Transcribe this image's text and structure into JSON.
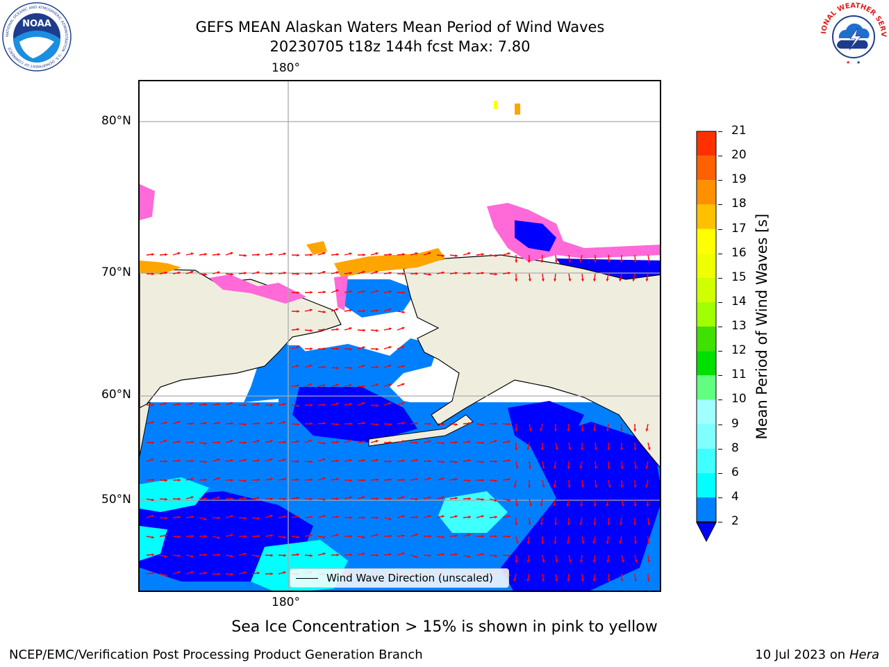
{
  "title_line1": "GEFS MEAN Alaskan Waters Mean Period of Wind Waves",
  "title_line2": "20230705 t18z 144h fcst   Max: 7.80",
  "noaa_logo": {
    "center": "NOAA",
    "ring": "NATIONAL OCEANIC AND ATMOSPHERIC ADMINISTRATION · U.S. DEPARTMENT OF COMMERCE"
  },
  "nws_logo": {
    "ring": "NATIONAL WEATHER SERVICE"
  },
  "map": {
    "lon_top": "180°",
    "lon_bottom": "180°",
    "lat_labels": [
      "80°N",
      "70°N",
      "60°N",
      "50°N"
    ],
    "legend_label": "Wind Wave Direction (unscaled)",
    "colors": {
      "land": "#efedde",
      "ocean_blue": "#0082ff",
      "deep_blue": "#0000ff",
      "cyan": "#00ffff",
      "ice_magenta": "#ff69d8",
      "ice_orange": "#ffa500",
      "arrows": "#ff0000"
    }
  },
  "colorbar": {
    "title": "Mean Period of Wind Waves [s]",
    "ticks": [
      "2",
      "4",
      "6",
      "8",
      "9",
      "10",
      "11",
      "12",
      "13",
      "14",
      "15",
      "16",
      "17",
      "18",
      "19",
      "20",
      "21"
    ],
    "levels": [
      2,
      4,
      6,
      8,
      9,
      10,
      11,
      12,
      13,
      14,
      15,
      16,
      17,
      18,
      19,
      20,
      21
    ],
    "colors": [
      "#0080ff",
      "#00ffff",
      "#40ffff",
      "#80ffff",
      "#a0ffff",
      "#60ff80",
      "#00e000",
      "#40e000",
      "#a0ff00",
      "#d0ff00",
      "#f0ff00",
      "#ffff00",
      "#ffc000",
      "#ff9000",
      "#ff6000",
      "#ff3000",
      "#ff0000"
    ],
    "under_color": "#0000ff"
  },
  "note": "Sea Ice Concentration > 15% is shown in pink to yellow",
  "footer_left": "NCEP/EMC/Verification Post Processing Product Generation Branch",
  "footer_date": "10 Jul 2023 on ",
  "footer_machine": "Hera"
}
